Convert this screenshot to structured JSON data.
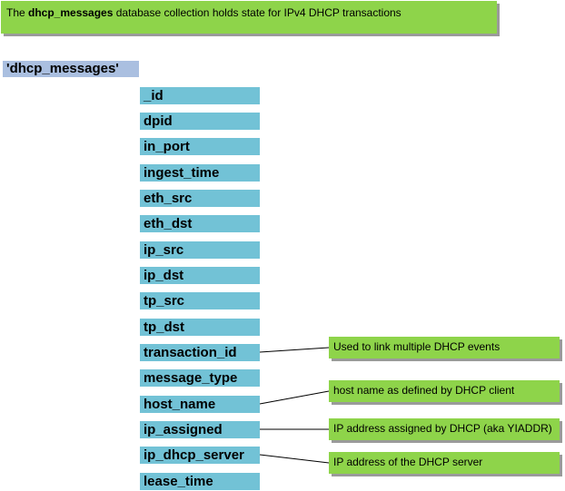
{
  "header": {
    "prefix": "The ",
    "bold": "dhcp_messages",
    "suffix": " database collection holds state for IPv4 DHCP transactions"
  },
  "collection": {
    "label": "'dhcp_messages'"
  },
  "fields": [
    "_id",
    "dpid",
    "in_port",
    "ingest_time",
    "eth_src",
    "eth_dst",
    "ip_src",
    "ip_dst",
    "tp_src",
    "tp_dst",
    "transaction_id",
    "message_type",
    "host_name",
    "ip_assigned",
    "ip_dhcp_server",
    "lease_time"
  ],
  "notes": {
    "transaction_id": "Used to link multiple DHCP events",
    "host_name": "host name as defined by DHCP client",
    "ip_assigned": "IP address assigned by DHCP (aka YIADDR)",
    "ip_dhcp_server": "IP address of the DHCP server"
  },
  "colors": {
    "note_green": "#8ed44a",
    "field_blue": "#72c2d6",
    "collection_blue": "#aabfe0"
  }
}
